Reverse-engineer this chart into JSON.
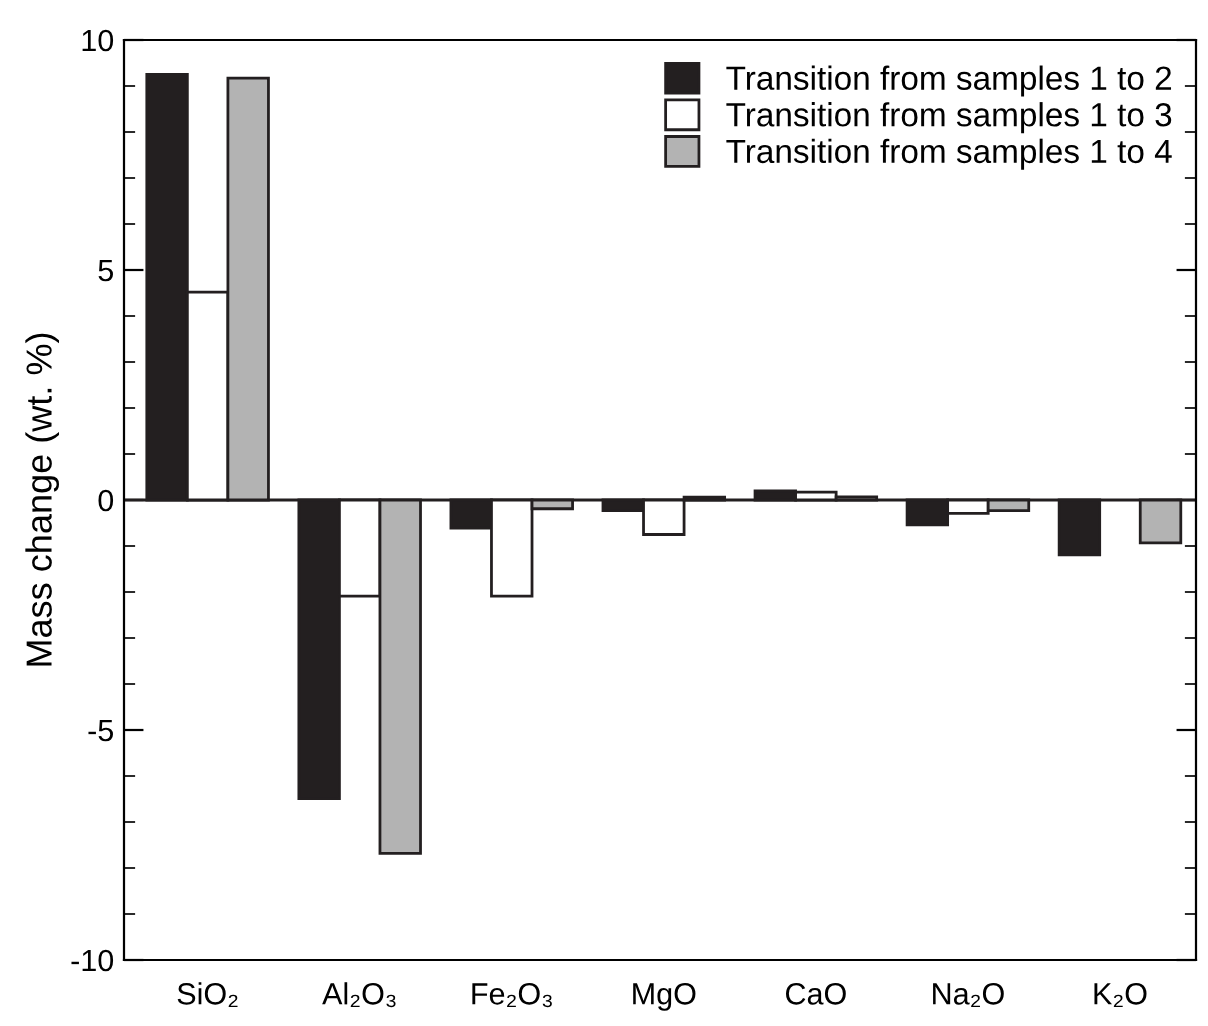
{
  "chart_data": {
    "type": "bar",
    "ylabel": "Mass change (wt. %)",
    "categories": [
      "SiO₂",
      "Al₂O₃",
      "Fe₂O₃",
      "MgO",
      "CaO",
      "Na₂O",
      "K₂O"
    ],
    "series": [
      {
        "name": "Transition from samples 1 to 2",
        "color": "#231f20",
        "values": [
          9.25,
          -6.49,
          -0.61,
          -0.23,
          0.2,
          -0.54,
          -1.19
        ]
      },
      {
        "name": "Transition from samples 1 to 3",
        "color": "#ffffff",
        "values": [
          4.52,
          -2.09,
          -2.09,
          -0.75,
          0.17,
          -0.29,
          null
        ]
      },
      {
        "name": "Transition from samples 1 to 4",
        "color": "#b3b3b3",
        "values": [
          9.17,
          -7.68,
          -0.19,
          0.06,
          0.07,
          -0.23,
          -0.93
        ]
      }
    ],
    "ylim": [
      -10,
      10
    ],
    "yticks": [
      -10,
      -5,
      0,
      5,
      10
    ],
    "legend": "top right",
    "ref_lines": [
      {
        "axis": "y",
        "value": 0,
        "color": "#231f20"
      }
    ]
  }
}
